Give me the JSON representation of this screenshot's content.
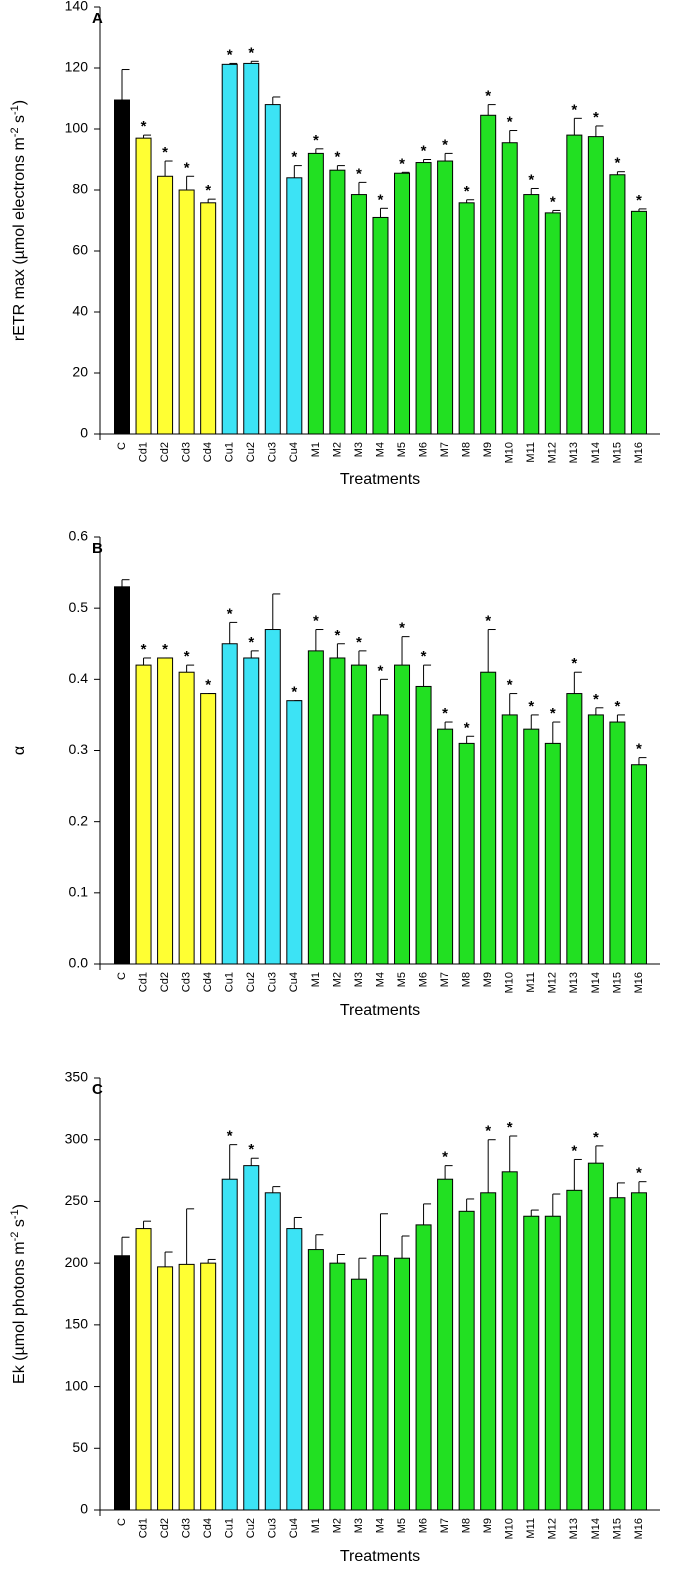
{
  "chart_data": [
    {
      "type": "bar",
      "panel_label": "A",
      "xlabel": "Treatments",
      "ylabel": [
        "rETR max (µmol electrons m",
        "-2",
        " s",
        "-1",
        ")"
      ],
      "categories": [
        "C",
        "Cd1",
        "Cd2",
        "Cd3",
        "Cd4",
        "Cu1",
        "Cu2",
        "Cu3",
        "Cu4",
        "M1",
        "M2",
        "M3",
        "M4",
        "M5",
        "M6",
        "M7",
        "M8",
        "M9",
        "M10",
        "M11",
        "M12",
        "M13",
        "M14",
        "M15",
        "M16"
      ],
      "values": [
        109.5,
        97,
        84.5,
        80,
        75.8,
        121.2,
        121.5,
        108,
        84,
        92,
        86.5,
        78.5,
        71,
        85.5,
        89,
        89.5,
        75.8,
        104.5,
        95.5,
        78.5,
        72.5,
        98,
        97.5,
        85,
        73
      ],
      "errors": [
        10,
        1,
        5,
        4.5,
        1.2,
        0.3,
        0.7,
        2.5,
        4,
        1.5,
        1.5,
        4,
        3,
        0.3,
        1,
        2.5,
        1,
        3.5,
        4,
        2,
        0.8,
        5.5,
        3.5,
        1,
        0.8
      ],
      "annotations": [
        null,
        "*",
        "*",
        "*",
        "*",
        "*",
        "*",
        null,
        "*",
        "*",
        "*",
        "*",
        "*",
        "*",
        "*",
        "*",
        "*",
        "*",
        "*",
        "*",
        "*",
        "*",
        "*",
        "*",
        "*"
      ],
      "colors": [
        "#000000",
        "#ffff33",
        "#ffff33",
        "#ffff33",
        "#ffff33",
        "#3ce3f5",
        "#3ce3f5",
        "#3ce3f5",
        "#3ce3f5",
        "#22e022",
        "#22e022",
        "#22e022",
        "#22e022",
        "#22e022",
        "#22e022",
        "#22e022",
        "#22e022",
        "#22e022",
        "#22e022",
        "#22e022",
        "#22e022",
        "#22e022",
        "#22e022",
        "#22e022",
        "#22e022"
      ],
      "ylim": [
        0,
        140
      ],
      "yticks": [
        0,
        20,
        40,
        60,
        80,
        100,
        120,
        140
      ]
    },
    {
      "type": "bar",
      "panel_label": "B",
      "xlabel": "Treatments",
      "ylabel": [
        "α"
      ],
      "categories": [
        "C",
        "Cd1",
        "Cd2",
        "Cd3",
        "Cd4",
        "Cu1",
        "Cu2",
        "Cu3",
        "Cu4",
        "M1",
        "M2",
        "M3",
        "M4",
        "M5",
        "M6",
        "M7",
        "M8",
        "M9",
        "M10",
        "M11",
        "M12",
        "M13",
        "M14",
        "M15",
        "M16"
      ],
      "values": [
        0.53,
        0.42,
        0.43,
        0.41,
        0.38,
        0.45,
        0.43,
        0.47,
        0.37,
        0.44,
        0.43,
        0.42,
        0.35,
        0.42,
        0.39,
        0.33,
        0.31,
        0.41,
        0.35,
        0.33,
        0.31,
        0.38,
        0.35,
        0.34,
        0.28
      ],
      "errors": [
        0.01,
        0.01,
        0,
        0.01,
        0,
        0.03,
        0.01,
        0.05,
        0,
        0.03,
        0.02,
        0.02,
        0.05,
        0.04,
        0.03,
        0.01,
        0.01,
        0.06,
        0.03,
        0.02,
        0.03,
        0.03,
        0.01,
        0.01,
        0.01
      ],
      "annotations": [
        null,
        "*",
        "*",
        "*",
        "*",
        "*",
        "*",
        null,
        "*",
        "*",
        "*",
        "*",
        "*",
        "*",
        "*",
        "*",
        "*",
        "*",
        "*",
        "*",
        "*",
        "*",
        "*",
        "*",
        "*"
      ],
      "colors": [
        "#000000",
        "#ffff33",
        "#ffff33",
        "#ffff33",
        "#ffff33",
        "#3ce3f5",
        "#3ce3f5",
        "#3ce3f5",
        "#3ce3f5",
        "#22e022",
        "#22e022",
        "#22e022",
        "#22e022",
        "#22e022",
        "#22e022",
        "#22e022",
        "#22e022",
        "#22e022",
        "#22e022",
        "#22e022",
        "#22e022",
        "#22e022",
        "#22e022",
        "#22e022",
        "#22e022"
      ],
      "ylim": [
        0,
        0.6
      ],
      "yticks": [
        {
          "value": 0,
          "label": "0.0"
        },
        0.1,
        0.2,
        0.3,
        0.4,
        0.5,
        0.6
      ]
    },
    {
      "type": "bar",
      "panel_label": "C",
      "xlabel": "Treatments",
      "ylabel": [
        "Ek (µmol photons m",
        "-2",
        " s",
        "-1",
        ")"
      ],
      "categories": [
        "C",
        "Cd1",
        "Cd2",
        "Cd3",
        "Cd4",
        "Cu1",
        "Cu2",
        "Cu3",
        "Cu4",
        "M1",
        "M2",
        "M3",
        "M4",
        "M5",
        "M6",
        "M7",
        "M8",
        "M9",
        "M10",
        "M11",
        "M12",
        "M13",
        "M14",
        "M15",
        "M16"
      ],
      "values": [
        206,
        228,
        197,
        199,
        200,
        268,
        279,
        257,
        228,
        211,
        200,
        187,
        206,
        204,
        231,
        268,
        242,
        257,
        274,
        238,
        238,
        259,
        281,
        253,
        257
      ],
      "errors": [
        15,
        6,
        12,
        45,
        3,
        28,
        6,
        5,
        9,
        12,
        7,
        17,
        34,
        18,
        17,
        11,
        10,
        43,
        29,
        5,
        18,
        25,
        14,
        12,
        9
      ],
      "annotations": [
        null,
        null,
        null,
        null,
        null,
        "*",
        "*",
        null,
        null,
        null,
        null,
        null,
        null,
        null,
        null,
        "*",
        null,
        "*",
        "*",
        null,
        null,
        "*",
        "*",
        null,
        "*"
      ],
      "colors": [
        "#000000",
        "#ffff33",
        "#ffff33",
        "#ffff33",
        "#ffff33",
        "#3ce3f5",
        "#3ce3f5",
        "#3ce3f5",
        "#3ce3f5",
        "#22e022",
        "#22e022",
        "#22e022",
        "#22e022",
        "#22e022",
        "#22e022",
        "#22e022",
        "#22e022",
        "#22e022",
        "#22e022",
        "#22e022",
        "#22e022",
        "#22e022",
        "#22e022",
        "#22e022",
        "#22e022"
      ],
      "ylim": [
        0,
        350
      ],
      "yticks": [
        0,
        50,
        100,
        150,
        200,
        250,
        300,
        350
      ]
    }
  ]
}
